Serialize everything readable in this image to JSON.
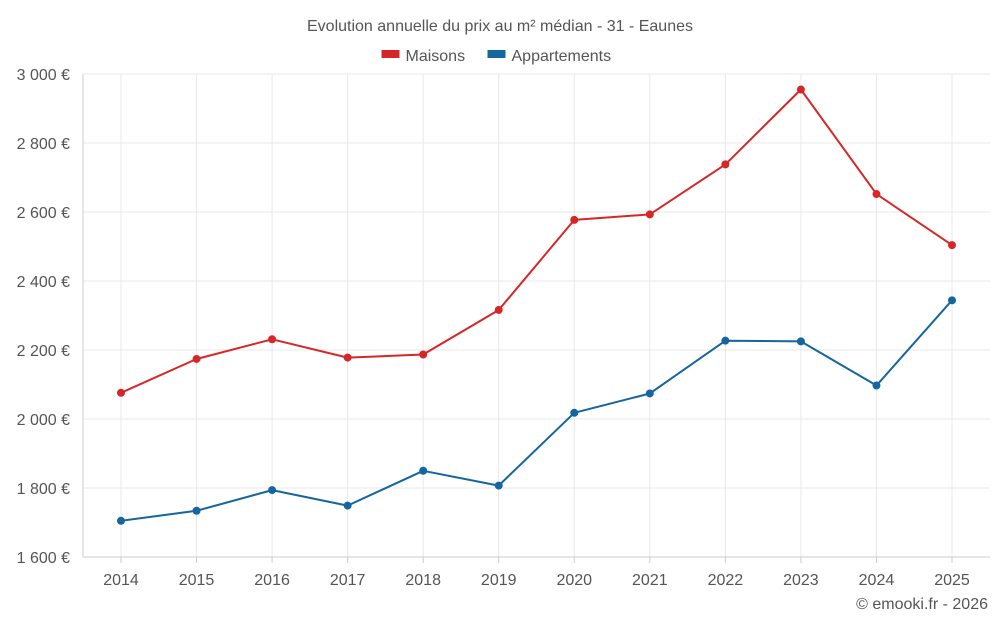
{
  "chart_data": {
    "type": "line",
    "title": "Evolution annuelle du prix au m² médian - 31 - Eaunes",
    "categories": [
      "2014",
      "2015",
      "2016",
      "2017",
      "2018",
      "2019",
      "2020",
      "2021",
      "2022",
      "2023",
      "2024",
      "2025"
    ],
    "series": [
      {
        "name": "Maisons",
        "color": "#d62728",
        "values": [
          2076,
          2174,
          2231,
          2178,
          2187,
          2316,
          2577,
          2593,
          2738,
          2955,
          2652,
          2504
        ]
      },
      {
        "name": "Appartements",
        "color": "#1565a0",
        "values": [
          1705,
          1734,
          1794,
          1749,
          1850,
          1807,
          2018,
          2074,
          2227,
          2225,
          2097,
          2344
        ]
      }
    ],
    "ylim": [
      1600,
      3000
    ],
    "yticks": [
      1600,
      1800,
      2000,
      2200,
      2400,
      2600,
      2800,
      3000
    ],
    "ytick_labels": [
      "1 600 €",
      "1 800 €",
      "2 000 €",
      "2 200 €",
      "2 400 €",
      "2 600 €",
      "2 800 €",
      "3 000 €"
    ],
    "legend_position": "top-center",
    "grid": true,
    "xlabel": "",
    "ylabel": ""
  },
  "credit": "© emooki.fr - 2026"
}
